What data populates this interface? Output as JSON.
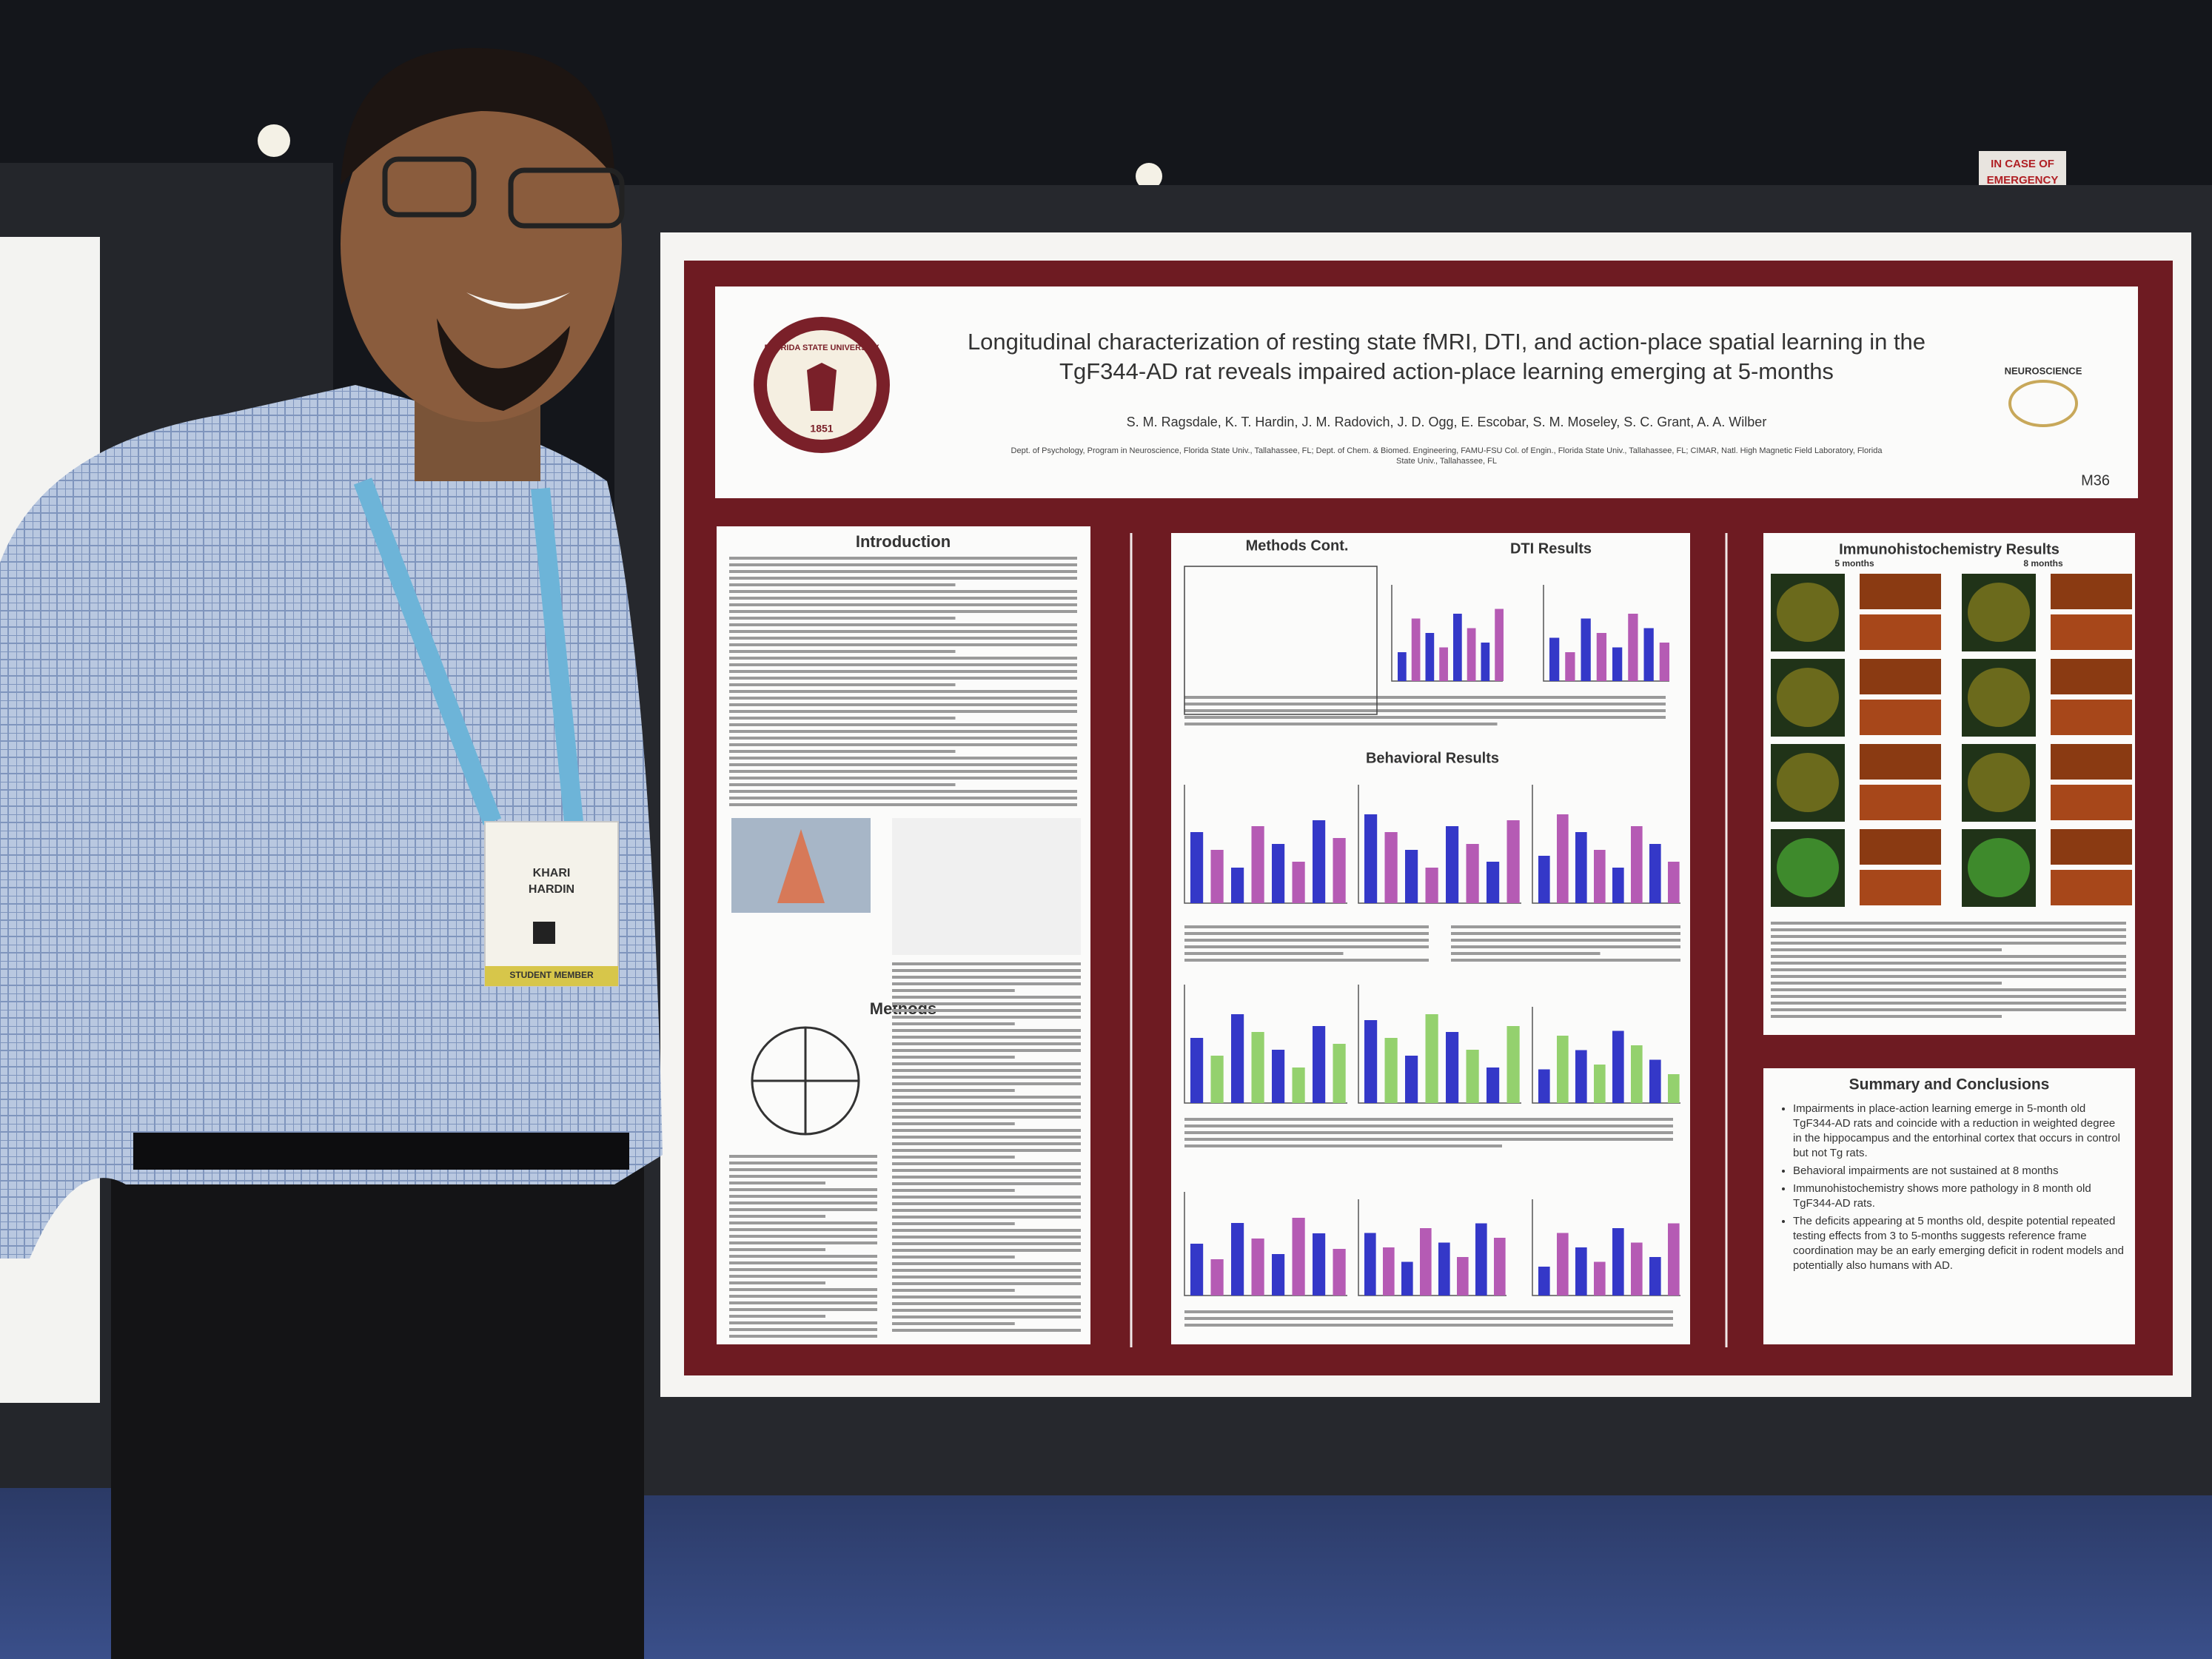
{
  "poster": {
    "title_lines": [
      "Longitudinal characterization of resting state fMRI, DTI, and action-place spatial learning in the",
      "TgF344-AD rat reveals impaired action-place learning emerging at 5-months"
    ],
    "authors": "S. M. Ragsdale, K. T. Hardin, J. M. Radovich, J. D. Ogg, E. Escobar, S. M. Moseley, S. C. Grant, A. A. Wilber",
    "affiliation_lines": [
      "Dept. of Psychology, Program in Neuroscience, Florida State Univ., Tallahassee, FL; Dept. of Chem. & Biomed. Engineering, FAMU-FSU Col. of Engin., Florida State Univ., Tallahassee, FL; CIMAR, Natl. High Magnetic Field Laboratory, Florida",
      "State Univ., Tallahassee, FL"
    ],
    "board_id": "M36",
    "logo_text": "FLORIDA STATE UNIVERSITY",
    "logo_year": "1851",
    "program_logo": "NEUROSCIENCE",
    "sections": {
      "introduction": "Introduction",
      "methods": "Methods",
      "methods_cont": "Methods Cont.",
      "dti": "DTI Results",
      "behavioral": "Behavioral Results",
      "ihc": "Immunohistochemistry Results",
      "summary": "Summary and Conclusions"
    },
    "ihc_columns": [
      "5 months",
      "8 months"
    ],
    "summary_bullets": [
      "Impairments in place-action learning emerge in 5-month old TgF344-AD rats and coincide with a reduction in weighted degree in the hippocampus and the entorhinal cortex that occurs in control but not Tg rats.",
      "Behavioral impairments are not sustained at 8 months",
      "Immunohistochemistry shows more pathology in 8 month old TgF344-AD rats.",
      "The deficits appearing at 5 months old, despite potential repeated testing effects from 3 to 5-months suggests reference frame coordination may be an early emerging deficit in rodent models and potentially also humans with AD."
    ]
  },
  "badge": {
    "name_lines": [
      "KHARI",
      "HARDIN"
    ],
    "member": "STUDENT MEMBER"
  },
  "sign": {
    "lines": [
      "IN CASE OF",
      "EMERGENCY"
    ]
  }
}
